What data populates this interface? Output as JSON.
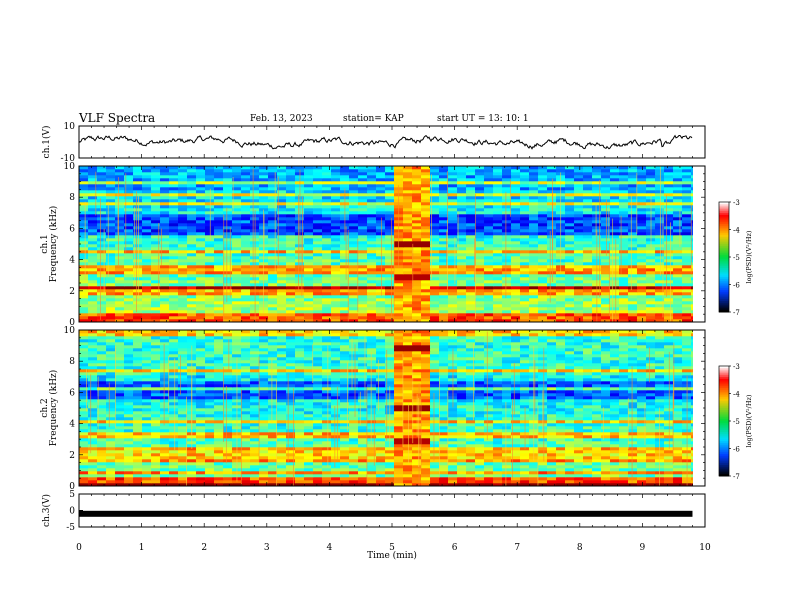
{
  "header": {
    "title": "VLF Spectra",
    "date": "Feb. 13, 2023",
    "station": "station= KAP",
    "start": "start  UT  =   13: 10: 1"
  },
  "chart_data": [
    {
      "type": "line",
      "panel": "ch1-waveform",
      "ylabel": "ch.1(V)",
      "yticks": [
        "10",
        "-10"
      ],
      "ylim": [
        -10,
        10
      ],
      "xlim": [
        0,
        10
      ],
      "trace_end_min": 9.8,
      "note": "noisy voltage trace oscillating roughly between -4 and +3 V",
      "color": "#000000"
    },
    {
      "type": "heatmap",
      "panel": "ch1-spectrogram",
      "ylabel_top": "ch.1",
      "ylabel": "Frequency  (kHz)",
      "yticks": [
        "0",
        "2",
        "4",
        "6",
        "8",
        "10"
      ],
      "ylim": [
        0,
        10
      ],
      "xlim": [
        0,
        10
      ],
      "data_end_min": 9.8,
      "burst_window_min": [
        5.0,
        5.65
      ],
      "colorbar": {
        "label": "log(PSD)(V²/Hz)",
        "ticks": [
          "-3",
          "-4",
          "-5",
          "-6",
          "-7"
        ],
        "range": [
          -7,
          -3
        ]
      }
    },
    {
      "type": "heatmap",
      "panel": "ch2-spectrogram",
      "ylabel_top": "ch.2",
      "ylabel": "Frequency  (kHz)",
      "yticks": [
        "0",
        "2",
        "4",
        "6",
        "8",
        "10"
      ],
      "ylim": [
        0,
        10
      ],
      "xlim": [
        0,
        10
      ],
      "data_end_min": 9.8,
      "burst_window_min": [
        5.0,
        5.65
      ],
      "colorbar": {
        "label": "log(PSD)(V²/Hz)",
        "ticks": [
          "-3",
          "-4",
          "-5",
          "-6",
          "-7"
        ],
        "range": [
          -7,
          -3
        ]
      }
    },
    {
      "type": "line",
      "panel": "ch3-waveform",
      "ylabel": "ch.3(V)",
      "yticks": [
        "5",
        "0",
        "-5"
      ],
      "ylim": [
        -5,
        5
      ],
      "xlim": [
        0,
        10
      ],
      "trace_end_min": 9.8,
      "level_v": -1,
      "color": "#000000"
    }
  ],
  "xaxis": {
    "label": "Time  (min)",
    "ticks": [
      "0",
      "1",
      "2",
      "3",
      "4",
      "5",
      "6",
      "7",
      "8",
      "9",
      "10"
    ]
  }
}
